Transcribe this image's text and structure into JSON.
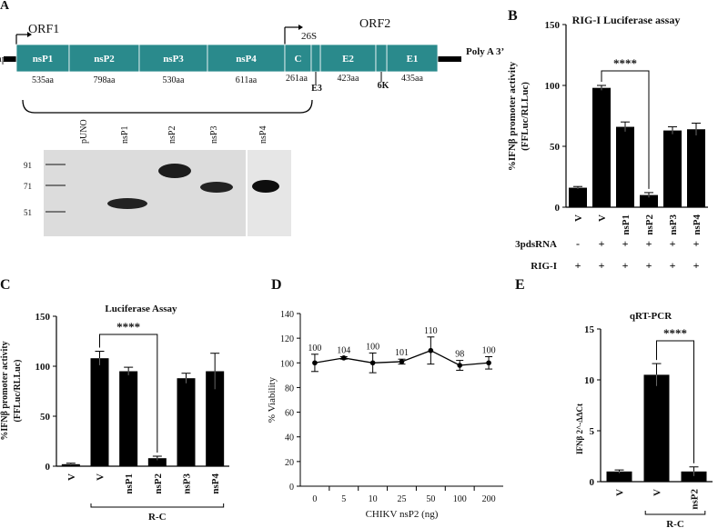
{
  "genome": {
    "panel_letter": "A",
    "cap": "cap",
    "orf1": "ORF1",
    "orf2": "ORF2",
    "subgenomic": "26S",
    "polya": "Poly A 3’",
    "segments": [
      {
        "name": "nsP1",
        "size": "535aa"
      },
      {
        "name": "nsP2",
        "size": "798aa"
      },
      {
        "name": "nsP3",
        "size": "530aa"
      },
      {
        "name": "nsP4",
        "size": "611aa"
      },
      {
        "name": "C",
        "size": "261aa"
      },
      {
        "name": "E2",
        "size": "423aa"
      },
      {
        "name": "E1",
        "size": "435aa"
      }
    ],
    "small_labels": [
      "E3",
      "6K"
    ],
    "color": "#2a8a8c"
  },
  "blot": {
    "lanes": [
      "pUNO",
      "nsP1",
      "nsP2",
      "nsP3",
      "nsP4"
    ],
    "markers": [
      "91",
      "71",
      "51"
    ]
  },
  "chart_data": [
    {
      "panel": "B",
      "type": "bar",
      "title": "RIG-I  Luciferase assay",
      "ylabel": "%IFNβ promoter activity (FFLuc/RLLuc)",
      "ylim": [
        0,
        150
      ],
      "yticks": [
        0,
        50,
        100,
        150
      ],
      "categories": [
        "V",
        "V",
        "nsP1",
        "nsP2",
        "nsP3",
        "nsP4"
      ],
      "values": [
        16,
        98,
        66,
        10,
        63,
        64
      ],
      "errors": [
        1,
        2,
        4,
        2,
        3,
        5
      ],
      "significance": {
        "from": 1,
        "to": 3,
        "label": "****"
      },
      "condition_rows": [
        {
          "label": "3pdsRNA",
          "marks": [
            "-",
            "+",
            "+",
            "+",
            "+",
            "+"
          ]
        },
        {
          "label": "RIG-I",
          "marks": [
            "+",
            "+",
            "+",
            "+",
            "+",
            "+"
          ]
        }
      ]
    },
    {
      "panel": "C",
      "type": "bar",
      "title": "Luciferase Assay",
      "ylabel": "%IFNβ promoter activity (FFLuc/RLLuc)",
      "ylim": [
        0,
        150
      ],
      "yticks": [
        0,
        50,
        100,
        150
      ],
      "categories": [
        "V",
        "V",
        "nsP1",
        "nsP2",
        "nsP3",
        "nsP4"
      ],
      "values": [
        2,
        108,
        95,
        8,
        88,
        95
      ],
      "errors": [
        1,
        7,
        4,
        2,
        5,
        18
      ],
      "significance": {
        "from": 1,
        "to": 3,
        "label": "****"
      },
      "group_label": "R-C"
    },
    {
      "panel": "D",
      "type": "line",
      "xlabel": "CHIKV nsP2 (ng)",
      "ylabel": "% Viability",
      "ylim": [
        0,
        140
      ],
      "yticks": [
        0,
        20,
        40,
        60,
        80,
        100,
        120,
        140
      ],
      "categories": [
        "0",
        "5",
        "10",
        "25",
        "50",
        "100",
        "200"
      ],
      "values": [
        100,
        104,
        100,
        101,
        110,
        98,
        100
      ],
      "errors": [
        7,
        1,
        8,
        2,
        11,
        4,
        5
      ],
      "point_labels": [
        "100",
        "104",
        "100",
        "101",
        "110",
        "98",
        "100"
      ]
    },
    {
      "panel": "E",
      "type": "bar",
      "title": "qRT-PCR",
      "ylabel": "IFNβ 2^-ΔΔCt",
      "ylim": [
        0,
        15
      ],
      "yticks": [
        0,
        5,
        10,
        15
      ],
      "categories": [
        "V",
        "V",
        "nsP2"
      ],
      "values": [
        1.0,
        10.5,
        1.0
      ],
      "errors": [
        0.15,
        1.1,
        0.45
      ],
      "significance": {
        "from": 1,
        "to": 2,
        "label": "****"
      },
      "group_label": "R-C"
    }
  ]
}
